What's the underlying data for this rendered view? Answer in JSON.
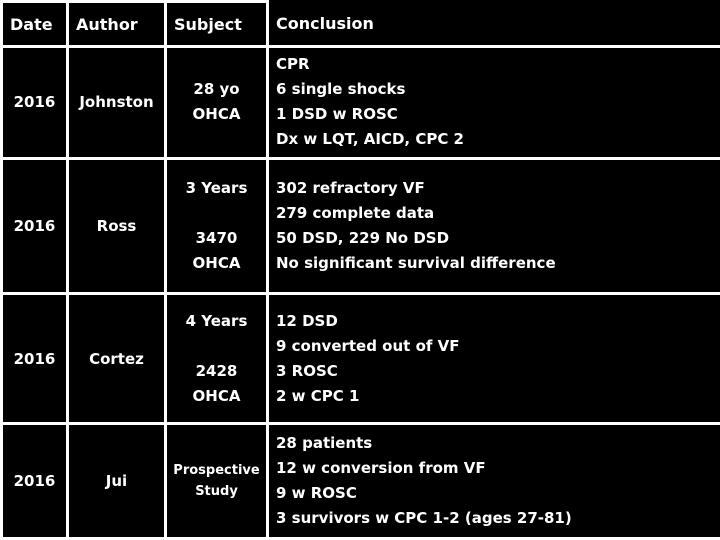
{
  "slide": {
    "background_color": "#000000",
    "text_color": "#ffffff",
    "border_color": "#ffffff"
  },
  "table": {
    "headers": {
      "date": "Date",
      "author": "Author",
      "subject": "Subject",
      "conclusion": "Conclusion"
    },
    "rows": [
      {
        "date": "2016",
        "author": "Johnston",
        "subject_lines": [
          "28 yo",
          "OHCA"
        ],
        "conclusion_lines": [
          "CPR",
          "6 single shocks",
          "1 DSD w ROSC",
          "Dx w LQT, AICD, CPC 2"
        ]
      },
      {
        "date": "2016",
        "author": "Ross",
        "subject_lines": [
          "3 Years",
          "",
          "3470",
          "OHCA"
        ],
        "conclusion_lines": [
          "302 refractory VF",
          "279 complete data",
          "50 DSD, 229 No DSD",
          "No significant survival difference"
        ]
      },
      {
        "date": "2016",
        "author": "Cortez",
        "subject_lines": [
          "4 Years",
          "",
          "2428",
          "OHCA"
        ],
        "conclusion_lines": [
          "12 DSD",
          "9 converted out of VF",
          "3 ROSC",
          "2 w CPC 1"
        ]
      },
      {
        "date": "2016",
        "author": "Jui",
        "subject_lines": [
          "Prospective",
          "Study"
        ],
        "conclusion_lines": [
          "28 patients",
          "12 w conversion from VF",
          "9 w ROSC",
          "3 survivors w CPC 1-2 (ages 27-81)"
        ]
      }
    ]
  }
}
